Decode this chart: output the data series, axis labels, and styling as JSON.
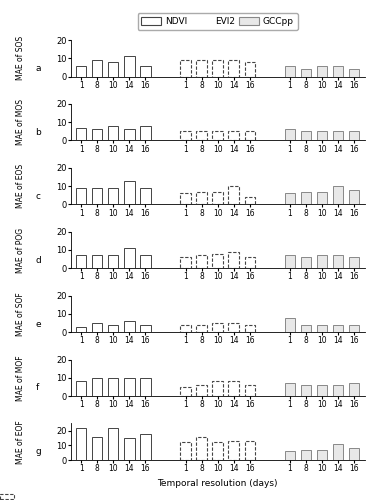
{
  "subplots": [
    {
      "label": "a",
      "ylabel": "MAE of SOS",
      "ylim": [
        0,
        20
      ],
      "yticks": [
        0,
        10,
        20
      ],
      "ndvi": [
        6,
        9,
        8,
        11,
        6
      ],
      "evi2": [
        9,
        9,
        9,
        9,
        8
      ],
      "gcc": [
        6,
        4,
        6,
        6,
        4
      ]
    },
    {
      "label": "b",
      "ylabel": "MAE of MOS",
      "ylim": [
        0,
        20
      ],
      "yticks": [
        0,
        10,
        20
      ],
      "ndvi": [
        7,
        6,
        8,
        6,
        8
      ],
      "evi2": [
        5,
        5,
        5,
        5,
        5
      ],
      "gcc": [
        6,
        5,
        5,
        5,
        5
      ]
    },
    {
      "label": "c",
      "ylabel": "MAE of EOS",
      "ylim": [
        0,
        20
      ],
      "yticks": [
        0,
        10,
        20
      ],
      "ndvi": [
        9,
        9,
        9,
        13,
        9
      ],
      "evi2": [
        6,
        7,
        7,
        10,
        4
      ],
      "gcc": [
        6,
        7,
        7,
        10,
        8
      ]
    },
    {
      "label": "d",
      "ylabel": "MAE of POG",
      "ylim": [
        0,
        20
      ],
      "yticks": [
        0,
        10,
        20
      ],
      "ndvi": [
        7,
        7,
        7,
        11,
        7
      ],
      "evi2": [
        6,
        7,
        8,
        9,
        6
      ],
      "gcc": [
        7,
        6,
        7,
        7,
        6
      ]
    },
    {
      "label": "e",
      "ylabel": "MAE of SOF",
      "ylim": [
        0,
        20
      ],
      "yticks": [
        0,
        10,
        20
      ],
      "ndvi": [
        3,
        5,
        4,
        6,
        4
      ],
      "evi2": [
        4,
        4,
        5,
        5,
        4
      ],
      "gcc": [
        8,
        4,
        4,
        4,
        4
      ]
    },
    {
      "label": "f",
      "ylabel": "MAE of MOF",
      "ylim": [
        0,
        20
      ],
      "yticks": [
        0,
        10,
        20
      ],
      "ndvi": [
        8,
        10,
        10,
        10,
        10
      ],
      "evi2": [
        5,
        6,
        8,
        8,
        6
      ],
      "gcc": [
        7,
        6,
        6,
        6,
        7
      ]
    },
    {
      "label": "g",
      "ylabel": "MAE of EOF",
      "ylim": [
        0,
        25
      ],
      "yticks": [
        0,
        10,
        20
      ],
      "ndvi": [
        22,
        16,
        22,
        15,
        18
      ],
      "evi2": [
        12,
        16,
        12,
        13,
        13
      ],
      "gcc": [
        6,
        7,
        7,
        11,
        8
      ]
    }
  ],
  "xtick_labels": [
    "1",
    "8",
    "10",
    "14",
    "16"
  ],
  "xlabel": "Temporal resolution (days)",
  "ndvi_color": "#ffffff",
  "ndvi_edgecolor": "#444444",
  "evi2_color": "#ffffff",
  "evi2_edgecolor": "#444444",
  "gcc_color": "#e8e8e8",
  "gcc_edgecolor": "#888888",
  "legend_labels": [
    "NDVI",
    "EVI2",
    "GCCpp"
  ]
}
